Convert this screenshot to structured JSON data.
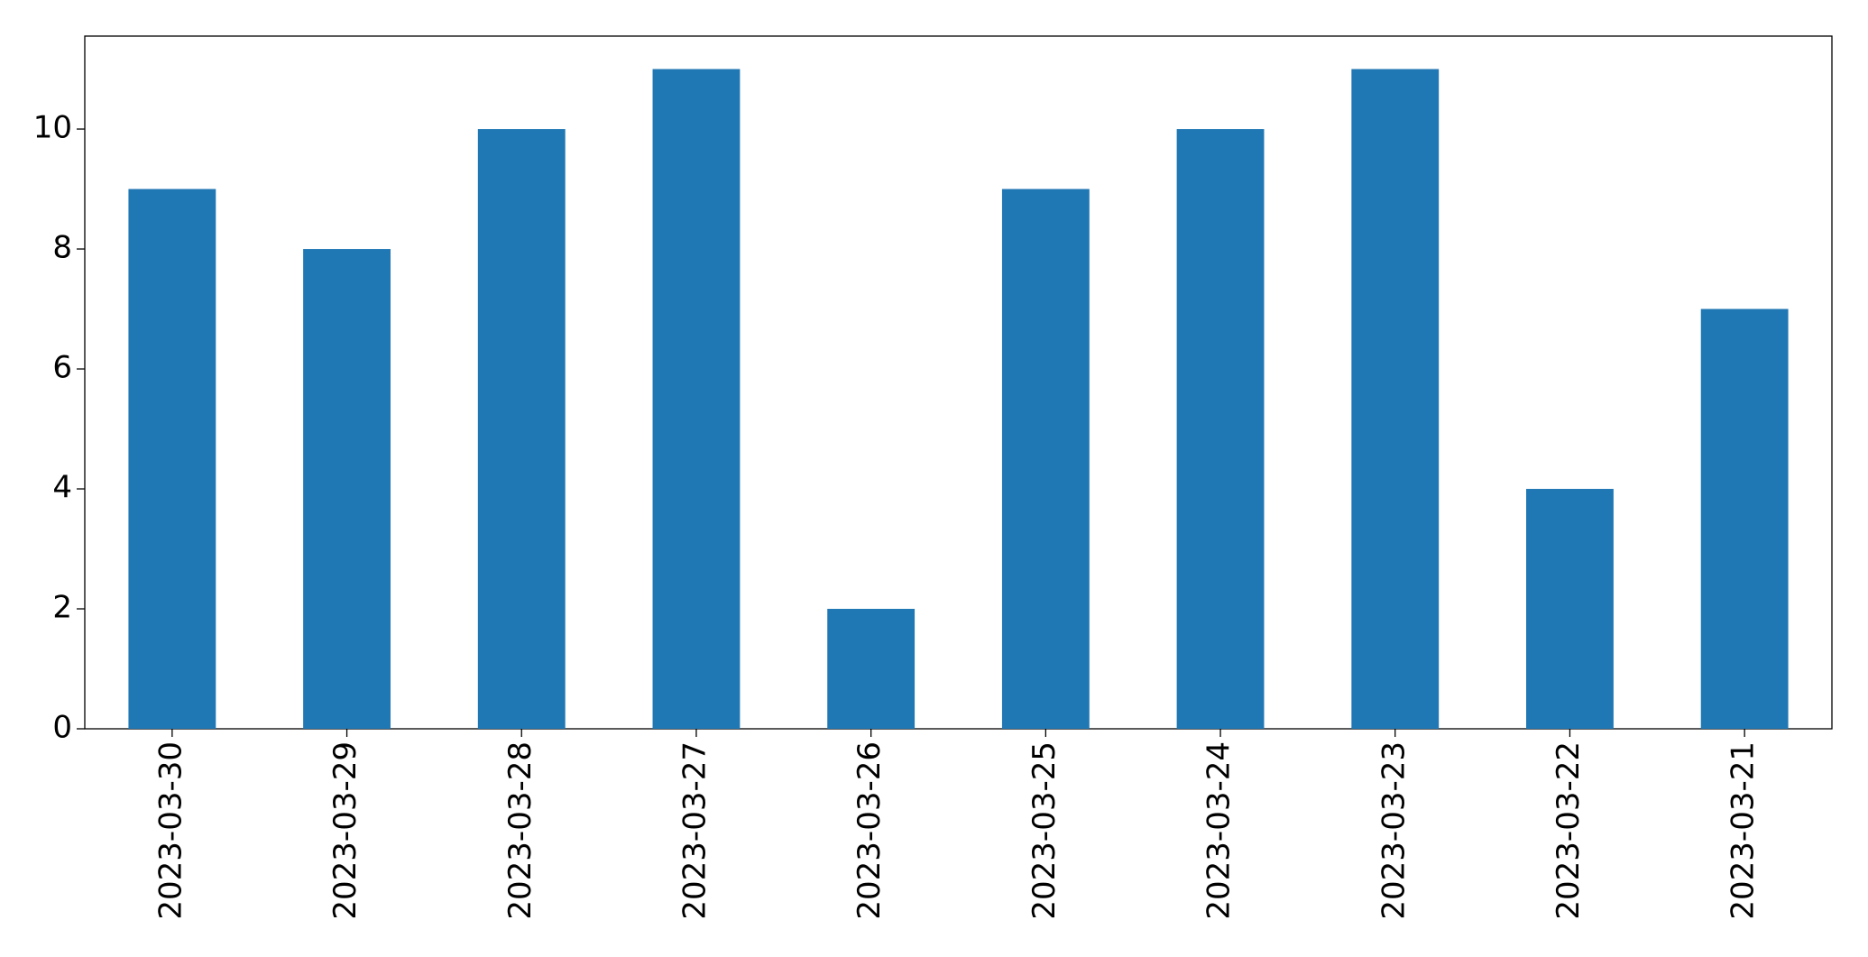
{
  "chart_data": {
    "type": "bar",
    "categories": [
      "2023-03-30",
      "2023-03-29",
      "2023-03-28",
      "2023-03-27",
      "2023-03-26",
      "2023-03-25",
      "2023-03-24",
      "2023-03-23",
      "2023-03-22",
      "2023-03-21"
    ],
    "values": [
      9,
      8,
      10,
      11,
      2,
      9,
      10,
      11,
      4,
      7
    ],
    "color": "#1f77b4",
    "ylim": [
      0,
      11.55
    ],
    "yticks": [
      0,
      2,
      4,
      6,
      8,
      10
    ],
    "grid": false
  }
}
